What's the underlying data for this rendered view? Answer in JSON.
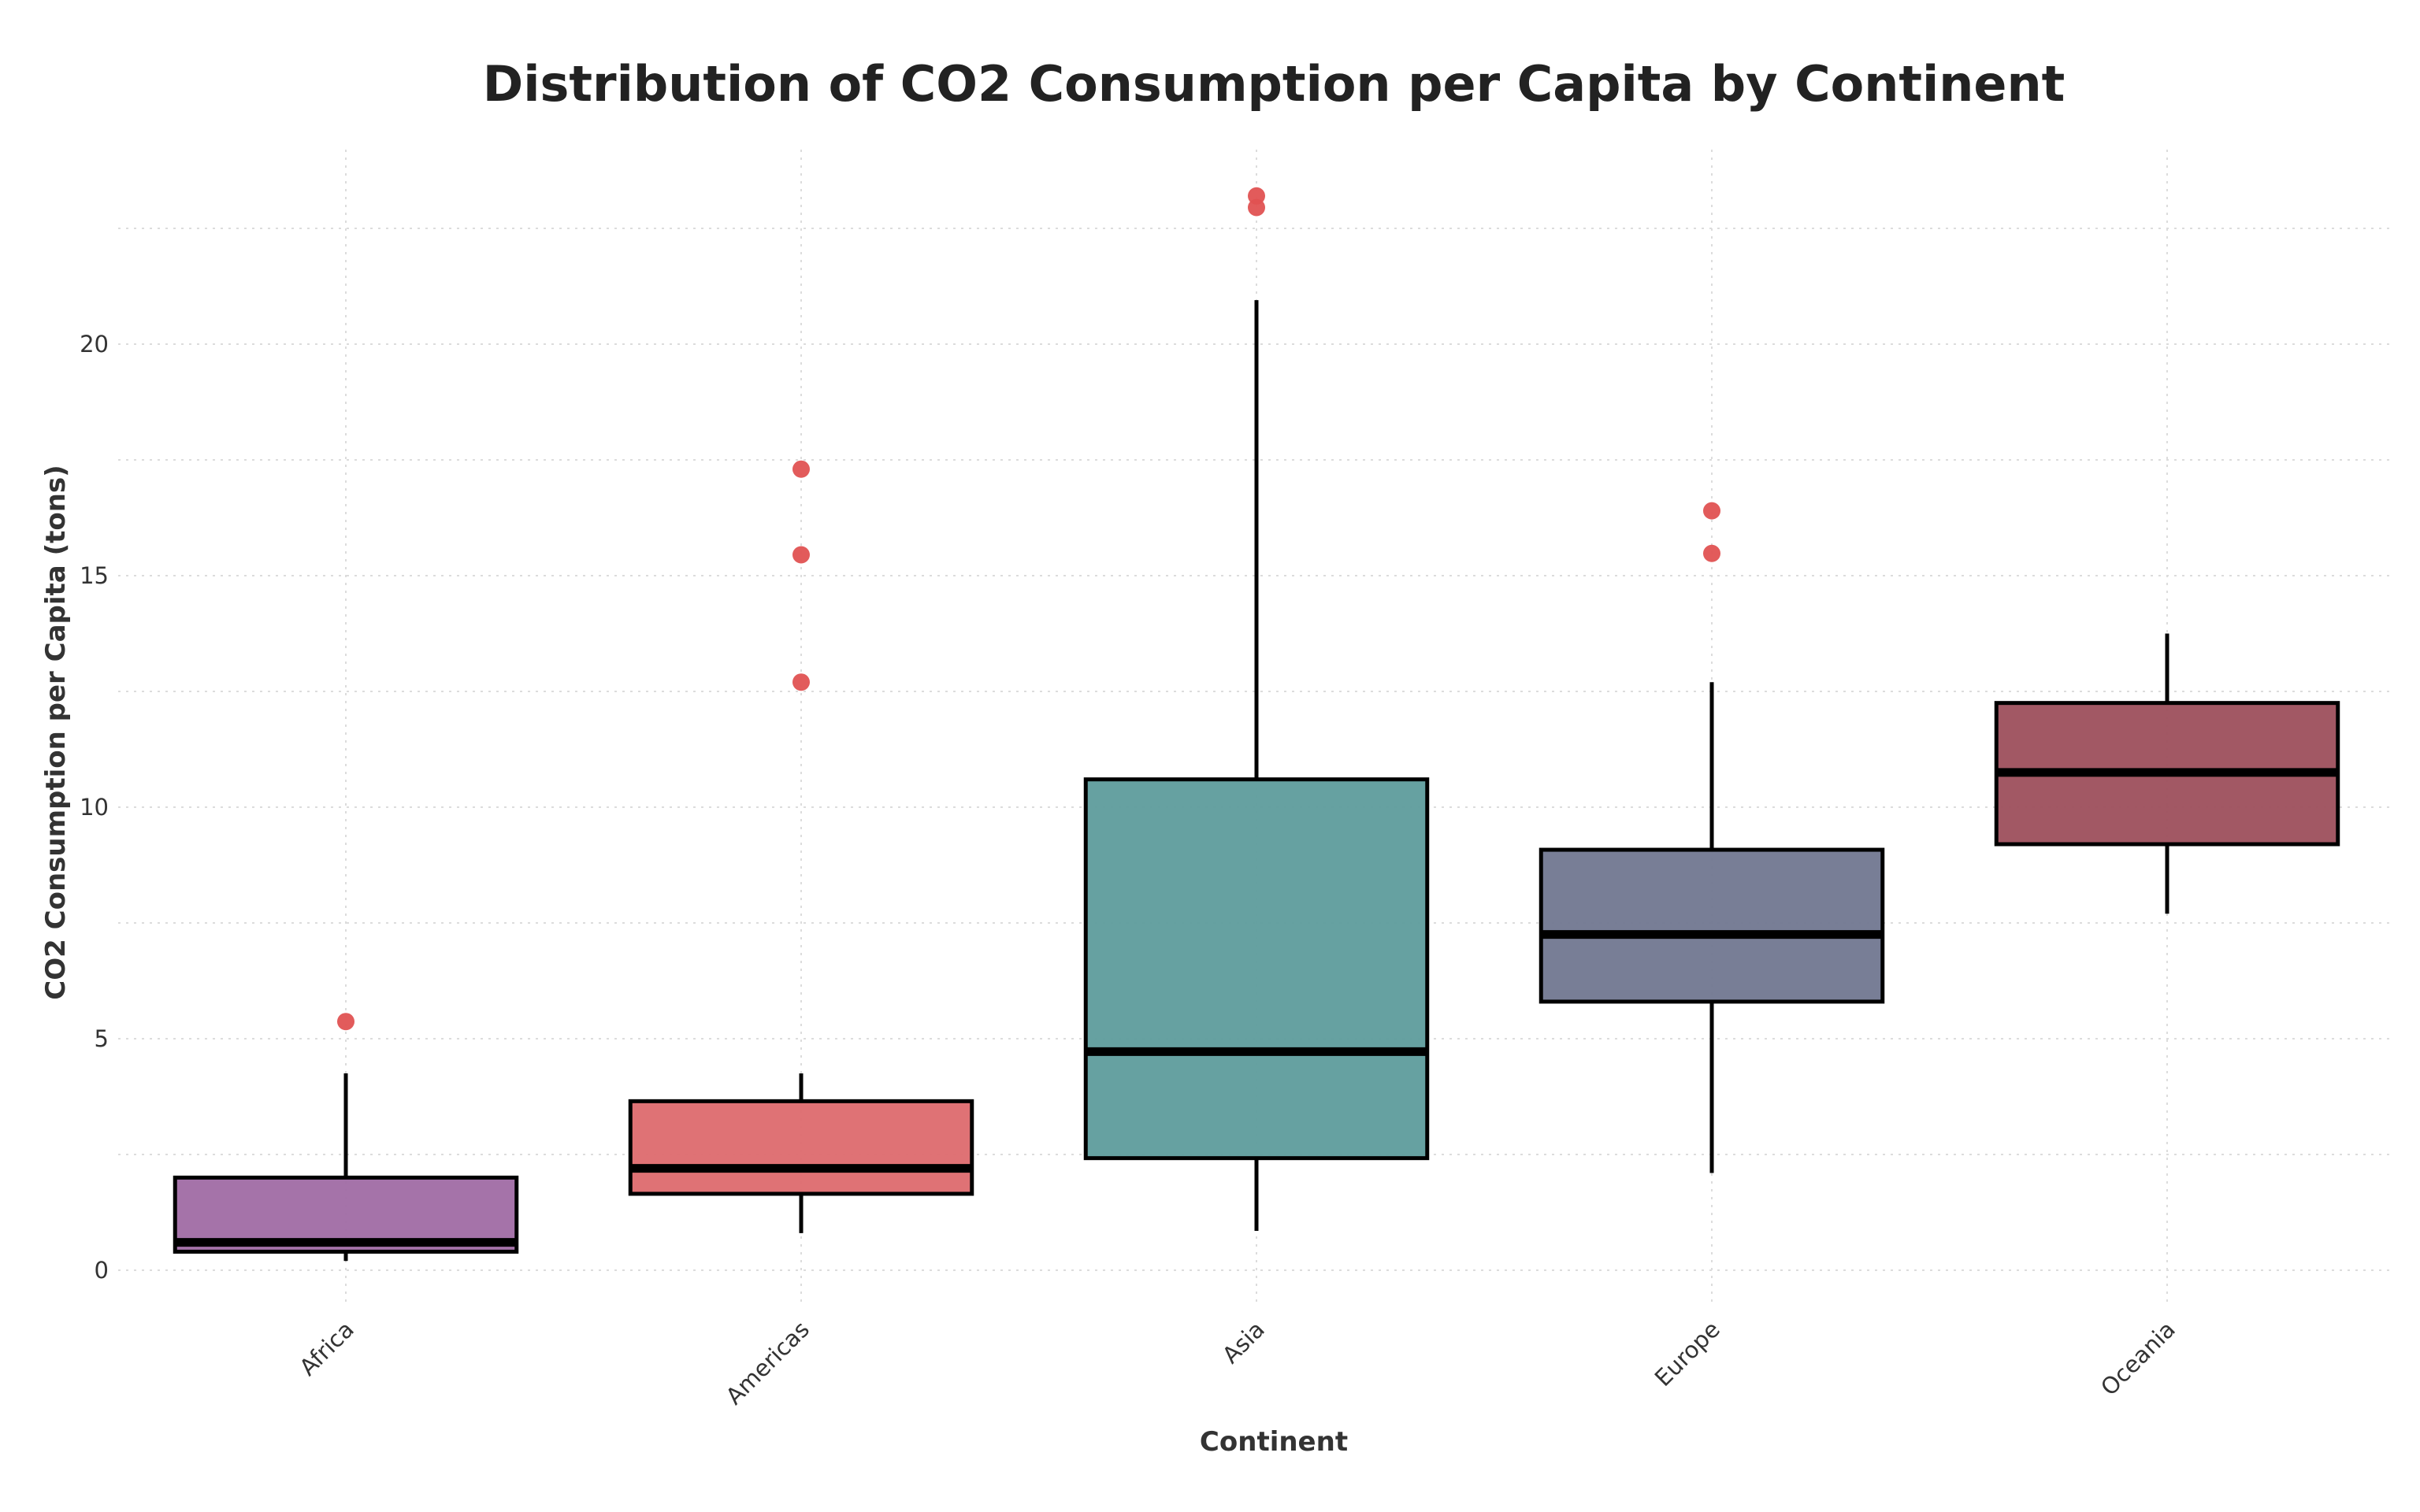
{
  "chart_data": {
    "type": "box",
    "title": "Distribution of CO2 Consumption per Capita by Continent",
    "xlabel": "Continent",
    "ylabel": "CO2 Consumption per Capita (tons)",
    "ylim": [
      -0.8,
      24.2
    ],
    "yticks": [
      0,
      5,
      10,
      15,
      20
    ],
    "grid": true,
    "categories": [
      "Africa",
      "Americas",
      "Asia",
      "Europe",
      "Oceania"
    ],
    "boxes": [
      {
        "category": "Africa",
        "whisker_low": 0.2,
        "q1": 0.4,
        "median": 0.6,
        "q3": 2.0,
        "whisker_high": 4.25,
        "outliers": [
          5.37
        ],
        "color": "#a06ca4"
      },
      {
        "category": "Americas",
        "whisker_low": 0.8,
        "q1": 1.65,
        "median": 2.2,
        "q3": 3.65,
        "whisker_high": 4.25,
        "outliers": [
          12.7,
          15.45,
          17.3
        ],
        "color": "#dd6a6e"
      },
      {
        "category": "Asia",
        "whisker_low": 0.85,
        "q1": 2.42,
        "median": 4.72,
        "q3": 10.6,
        "whisker_high": 20.95,
        "outliers": [
          22.95,
          23.2
        ],
        "color": "#5e9c9c"
      },
      {
        "category": "Europe",
        "whisker_low": 2.1,
        "q1": 5.8,
        "median": 7.25,
        "q3": 9.08,
        "whisker_high": 12.7,
        "outliers": [
          15.48,
          16.4
        ],
        "color": "#717790"
      },
      {
        "category": "Oceania",
        "whisker_low": 7.7,
        "q1": 9.2,
        "median": 10.75,
        "q3": 12.25,
        "whisker_high": 13.75,
        "outliers": [],
        "color": "#9d4f5c"
      }
    ],
    "outlier_color": "#e05252",
    "whisker_color": "#000000"
  }
}
